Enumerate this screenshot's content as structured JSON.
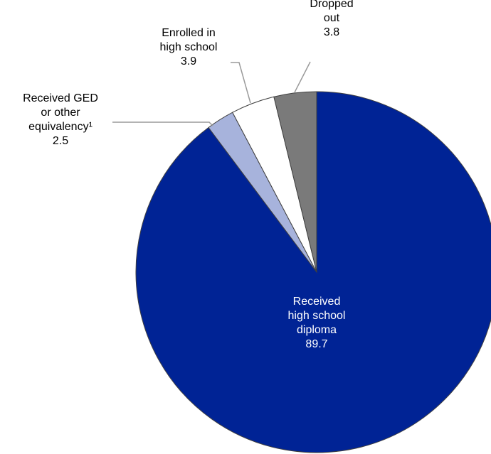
{
  "chart_data": {
    "type": "pie",
    "title": "",
    "start_angle_deg": 0,
    "direction": "clockwise",
    "slices": [
      {
        "label_lines": [
          "Received",
          "high school",
          "diploma"
        ],
        "value": 89.7,
        "value_text": "89.7",
        "color": "#002395",
        "label_color": "#ffffff"
      },
      {
        "label_lines": [
          "Received GED",
          "or other",
          "equivalency¹"
        ],
        "value": 2.5,
        "value_text": "2.5",
        "color": "#a7b3dc",
        "label_color": "#000000"
      },
      {
        "label_lines": [
          "Enrolled in",
          "high school"
        ],
        "value": 3.9,
        "value_text": "3.9",
        "color": "#ffffff",
        "label_color": "#000000"
      },
      {
        "label_lines": [
          "Dropped",
          "out"
        ],
        "value": 3.8,
        "value_text": "3.8",
        "color": "#7a7a7a",
        "label_color": "#000000"
      }
    ],
    "slice_border_color": "#404040",
    "leader_line_color": "#9a9a9a"
  }
}
